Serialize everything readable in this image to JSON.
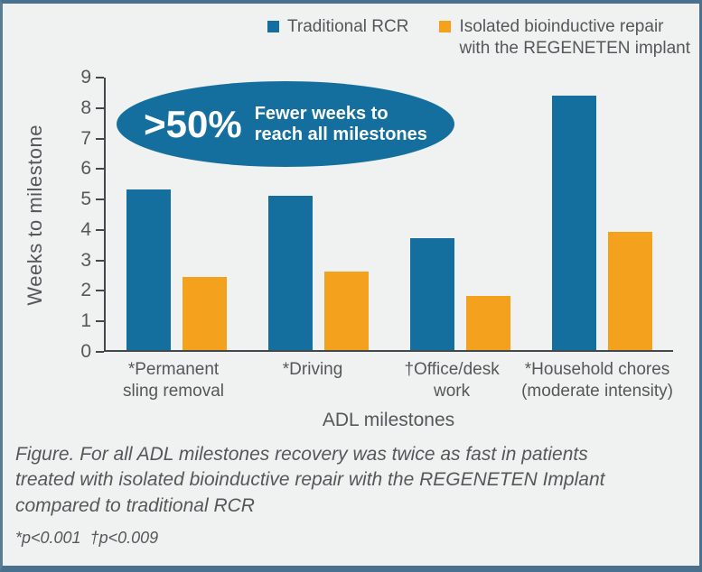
{
  "colors": {
    "traditional_rcr": "#146f9e",
    "regeneten": "#f4a11d",
    "text": "#54585a",
    "axis": "#43484c",
    "background": "#f0f1f1",
    "frame_border": "#49708c",
    "badge_background": "#146f9e"
  },
  "legend": {
    "items": [
      {
        "label": "Traditional RCR",
        "color": "#146f9e"
      },
      {
        "label": "Isolated bioinductive repair\nwith the REGENETEN implant",
        "color": "#f4a11d"
      }
    ]
  },
  "badge": {
    "big": ">50%",
    "text": "Fewer weeks to\nreach all milestones"
  },
  "chart_data": {
    "type": "bar",
    "categories": [
      "*Permanent\nsling removal",
      "*Driving",
      "†Office/desk\nwork",
      "*Household chores\n(moderate intensity)"
    ],
    "series": [
      {
        "name": "Traditional RCR",
        "color": "#146f9e",
        "values": [
          5.3,
          5.1,
          3.7,
          8.4
        ]
      },
      {
        "name": "Isolated bioinductive repair with the REGENETEN implant",
        "color": "#f4a11d",
        "values": [
          2.4,
          2.6,
          1.8,
          3.9
        ]
      }
    ],
    "title": "",
    "xlabel": "ADL milestones",
    "ylabel": "Weeks to milestone",
    "ylim": [
      0,
      9
    ],
    "yticks": [
      0,
      1,
      2,
      3,
      4,
      5,
      6,
      7,
      8,
      9
    ],
    "grid": false,
    "legend_position": "top",
    "annotation": ">50% Fewer weeks to reach all milestones"
  },
  "caption": {
    "figure_text": "Figure. For all ADL milestones recovery was twice as fast in patients\ntreated with isolated bioinductive repair with the REGENETEN Implant\ncompared to traditional RCR",
    "footnote": "*p<0.001  †p<0.009"
  }
}
